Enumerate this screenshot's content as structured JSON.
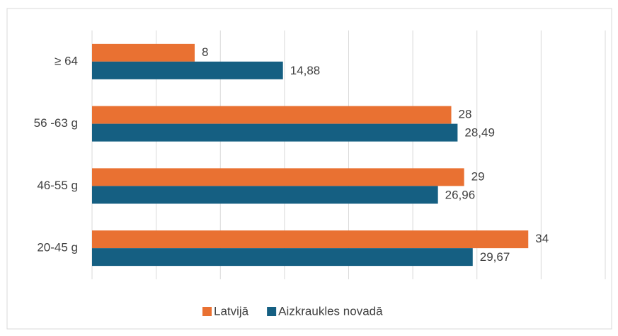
{
  "chart_data": {
    "type": "bar",
    "orientation": "horizontal",
    "categories": [
      "≥ 64",
      "56 -63 g",
      "46-55 g",
      "20-45 g"
    ],
    "series": [
      {
        "name": "Latvijā",
        "color": "#e97132",
        "values": [
          8,
          28,
          29,
          34
        ]
      },
      {
        "name": "Aizkraukles novadā",
        "color": "#155f82",
        "values": [
          14.88,
          28.49,
          26.96,
          29.67
        ],
        "value_labels": [
          "14,88",
          "28,49",
          "26,96",
          "29,67"
        ]
      }
    ],
    "xlim": [
      0,
      40
    ],
    "xticks": [
      0,
      5,
      10,
      15,
      20,
      25,
      30,
      35,
      40
    ],
    "grid": true,
    "legend": "bottom"
  }
}
